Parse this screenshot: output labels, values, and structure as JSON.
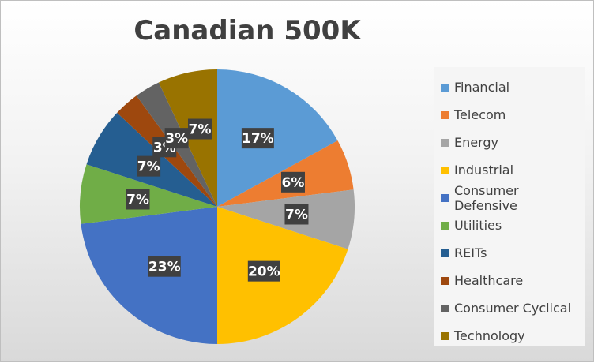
{
  "chart_data": {
    "type": "pie",
    "title": "Canadian 500K",
    "categories": [
      "Financial",
      "Telecom",
      "Energy",
      "Industrial",
      "Consumer Defensive",
      "Utilities",
      "REITs",
      "Healthcare",
      "Consumer Cyclical",
      "Technology"
    ],
    "values": [
      17,
      6,
      7,
      20,
      23,
      7,
      7,
      3,
      3,
      7
    ],
    "data_labels": [
      "17%",
      "6%",
      "7%",
      "20%",
      "23%",
      "7%",
      "7%",
      "3%",
      "3%",
      "7%"
    ],
    "colors": [
      "#5b9bd5",
      "#ed7d31",
      "#a5a5a5",
      "#ffc000",
      "#4472c4",
      "#70ad47",
      "#255e91",
      "#9e480e",
      "#636363",
      "#997300"
    ],
    "legend_position": "right"
  }
}
